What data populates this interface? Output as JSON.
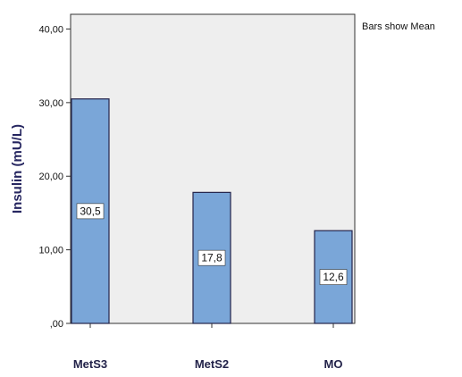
{
  "chart_data": {
    "type": "bar",
    "categories": [
      "MetS3",
      "MetS2",
      "MO"
    ],
    "values": [
      30.5,
      17.8,
      12.6
    ],
    "value_labels": [
      "30,5",
      "17,8",
      "12,6"
    ],
    "ylabel": "Insulin   (mU/L)",
    "ylim": [
      0,
      42
    ],
    "yticks": [
      0,
      10,
      20,
      30,
      40
    ],
    "ytick_labels": [
      ",00",
      "10,00",
      "20,00",
      "30,00",
      "40,00"
    ],
    "annotation": "Bars show Mean",
    "grid": false,
    "legend": "none",
    "colors": {
      "bar_fill": "#7aa6d8",
      "bar_stroke": "#23234a",
      "plot_background": "#eeeeee",
      "axis_label": "#262660",
      "category_label": "#23234a"
    }
  }
}
